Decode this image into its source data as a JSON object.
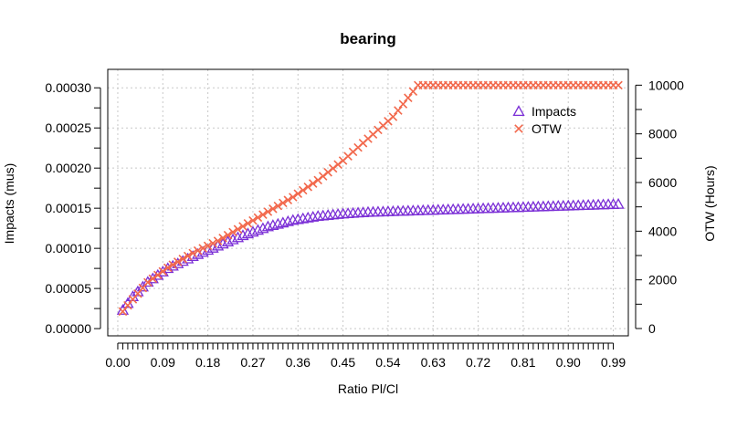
{
  "chart_data": {
    "type": "scatter",
    "title": "bearing",
    "xlabel": "Ratio Pl/Cl",
    "ylabel": "Impacts  (mus)",
    "y2label": "OTW (Hours)",
    "xlim": [
      -0.02,
      1.02
    ],
    "ylim": [
      -9e-06,
      0.000323
    ],
    "y2lim": [
      -300,
      10650
    ],
    "x_ticks": [
      "0.00",
      "0.09",
      "0.18",
      "0.27",
      "0.36",
      "0.45",
      "0.54",
      "0.63",
      "0.72",
      "0.81",
      "0.90",
      "0.99"
    ],
    "y_ticks": [
      "0.00000",
      "0.00005",
      "0.00010",
      "0.00015",
      "0.00020",
      "0.00025",
      "0.00030"
    ],
    "y2_ticks": [
      "0",
      "2000",
      "4000",
      "6000",
      "8000",
      "10000"
    ],
    "grid": true,
    "legend_position": "top-right",
    "series": [
      {
        "name": "Impacts",
        "axis": "left",
        "marker": "triangle",
        "color": "#7b2fd6",
        "x_range": [
          0.01,
          1.0
        ],
        "point_count": 100,
        "anchors_x": [
          0.01,
          0.03,
          0.06,
          0.1,
          0.15,
          0.2,
          0.25,
          0.3,
          0.35,
          0.4,
          0.45,
          0.5,
          0.6,
          0.7,
          0.8,
          0.9,
          1.0
        ],
        "anchors_y": [
          2.3e-05,
          4e-05,
          5.8e-05,
          7.5e-05,
          9e-05,
          0.000103,
          0.000116,
          0.000127,
          0.000135,
          0.00014,
          0.000143,
          0.000145,
          0.000147,
          0.000149,
          0.000151,
          0.000153,
          0.000155
        ]
      },
      {
        "name": "OTW",
        "axis": "right",
        "marker": "x",
        "color": "#f2684c",
        "x_range": [
          0.01,
          1.0
        ],
        "point_count": 100,
        "anchors_x": [
          0.01,
          0.03,
          0.06,
          0.1,
          0.15,
          0.2,
          0.25,
          0.3,
          0.35,
          0.4,
          0.45,
          0.5,
          0.55,
          0.6,
          0.7,
          0.8,
          0.9,
          1.0
        ],
        "anchors_y": [
          700,
          1200,
          1900,
          2500,
          3100,
          3600,
          4200,
          4800,
          5400,
          6100,
          6900,
          7800,
          8700,
          10000,
          10000,
          10000,
          10000,
          10000
        ]
      }
    ]
  }
}
